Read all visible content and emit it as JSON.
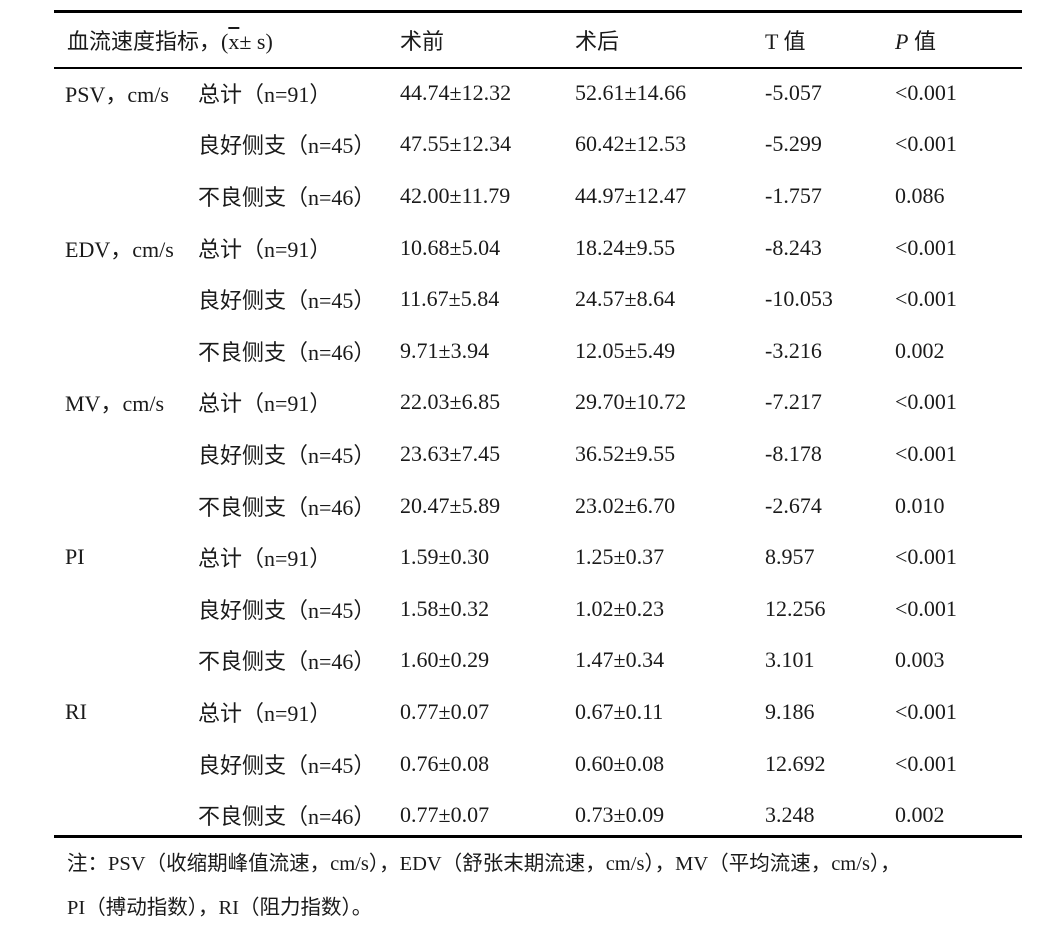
{
  "table": {
    "header": {
      "col1_prefix": "血流速度指标，(",
      "col1_xbar": "x",
      "col1_suffix": "± s)",
      "before": "术前",
      "after": "术后",
      "t_label": "T 值",
      "p_italic": "P",
      "p_suffix": " 值"
    },
    "rows": [
      {
        "metric": "PSV，cm/s",
        "group": "总计（n=91）",
        "before": "44.74±12.32",
        "after": "52.61±14.66",
        "t": "-5.057",
        "p": "<0.001"
      },
      {
        "metric": "",
        "group": "良好侧支（n=45）",
        "before": "47.55±12.34",
        "after": "60.42±12.53",
        "t": "-5.299",
        "p": "<0.001"
      },
      {
        "metric": "",
        "group": "不良侧支（n=46）",
        "before": "42.00±11.79",
        "after": "44.97±12.47",
        "t": "-1.757",
        "p": "0.086"
      },
      {
        "metric": "EDV，cm/s",
        "group": "总计（n=91）",
        "before": "10.68±5.04",
        "after": "18.24±9.55",
        "t": "-8.243",
        "p": "<0.001"
      },
      {
        "metric": "",
        "group": "良好侧支（n=45）",
        "before": "11.67±5.84",
        "after": "24.57±8.64",
        "t": "-10.053",
        "p": "<0.001"
      },
      {
        "metric": "",
        "group": "不良侧支（n=46）",
        "before": "9.71±3.94",
        "after": "12.05±5.49",
        "t": "-3.216",
        "p": "0.002"
      },
      {
        "metric": "MV，cm/s",
        "group": "总计（n=91）",
        "before": "22.03±6.85",
        "after": "29.70±10.72",
        "t": "-7.217",
        "p": "<0.001"
      },
      {
        "metric": "",
        "group": "良好侧支（n=45）",
        "before": "23.63±7.45",
        "after": "36.52±9.55",
        "t": "-8.178",
        "p": "<0.001"
      },
      {
        "metric": "",
        "group": "不良侧支（n=46）",
        "before": "20.47±5.89",
        "after": "23.02±6.70",
        "t": "-2.674",
        "p": "0.010"
      },
      {
        "metric": "PI",
        "group": "总计（n=91）",
        "before": "1.59±0.30",
        "after": "1.25±0.37",
        "t": "8.957",
        "p": "<0.001"
      },
      {
        "metric": "",
        "group": "良好侧支（n=45）",
        "before": "1.58±0.32",
        "after": "1.02±0.23",
        "t": "12.256",
        "p": "<0.001"
      },
      {
        "metric": "",
        "group": "不良侧支（n=46）",
        "before": "1.60±0.29",
        "after": "1.47±0.34",
        "t": "3.101",
        "p": "0.003"
      },
      {
        "metric": "RI",
        "group": "总计（n=91）",
        "before": "0.77±0.07",
        "after": "0.67±0.11",
        "t": "9.186",
        "p": "<0.001"
      },
      {
        "metric": "",
        "group": "良好侧支（n=45）",
        "before": "0.76±0.08",
        "after": "0.60±0.08",
        "t": "12.692",
        "p": "<0.001"
      },
      {
        "metric": "",
        "group": "不良侧支（n=46）",
        "before": "0.77±0.07",
        "after": "0.73±0.09",
        "t": "3.248",
        "p": "0.002"
      }
    ]
  },
  "note": {
    "line1": "注：PSV（收缩期峰值流速，cm/s），EDV（舒张末期流速，cm/s），MV（平均流速，cm/s），",
    "line2": "PI（搏动指数），RI（阻力指数）。"
  }
}
